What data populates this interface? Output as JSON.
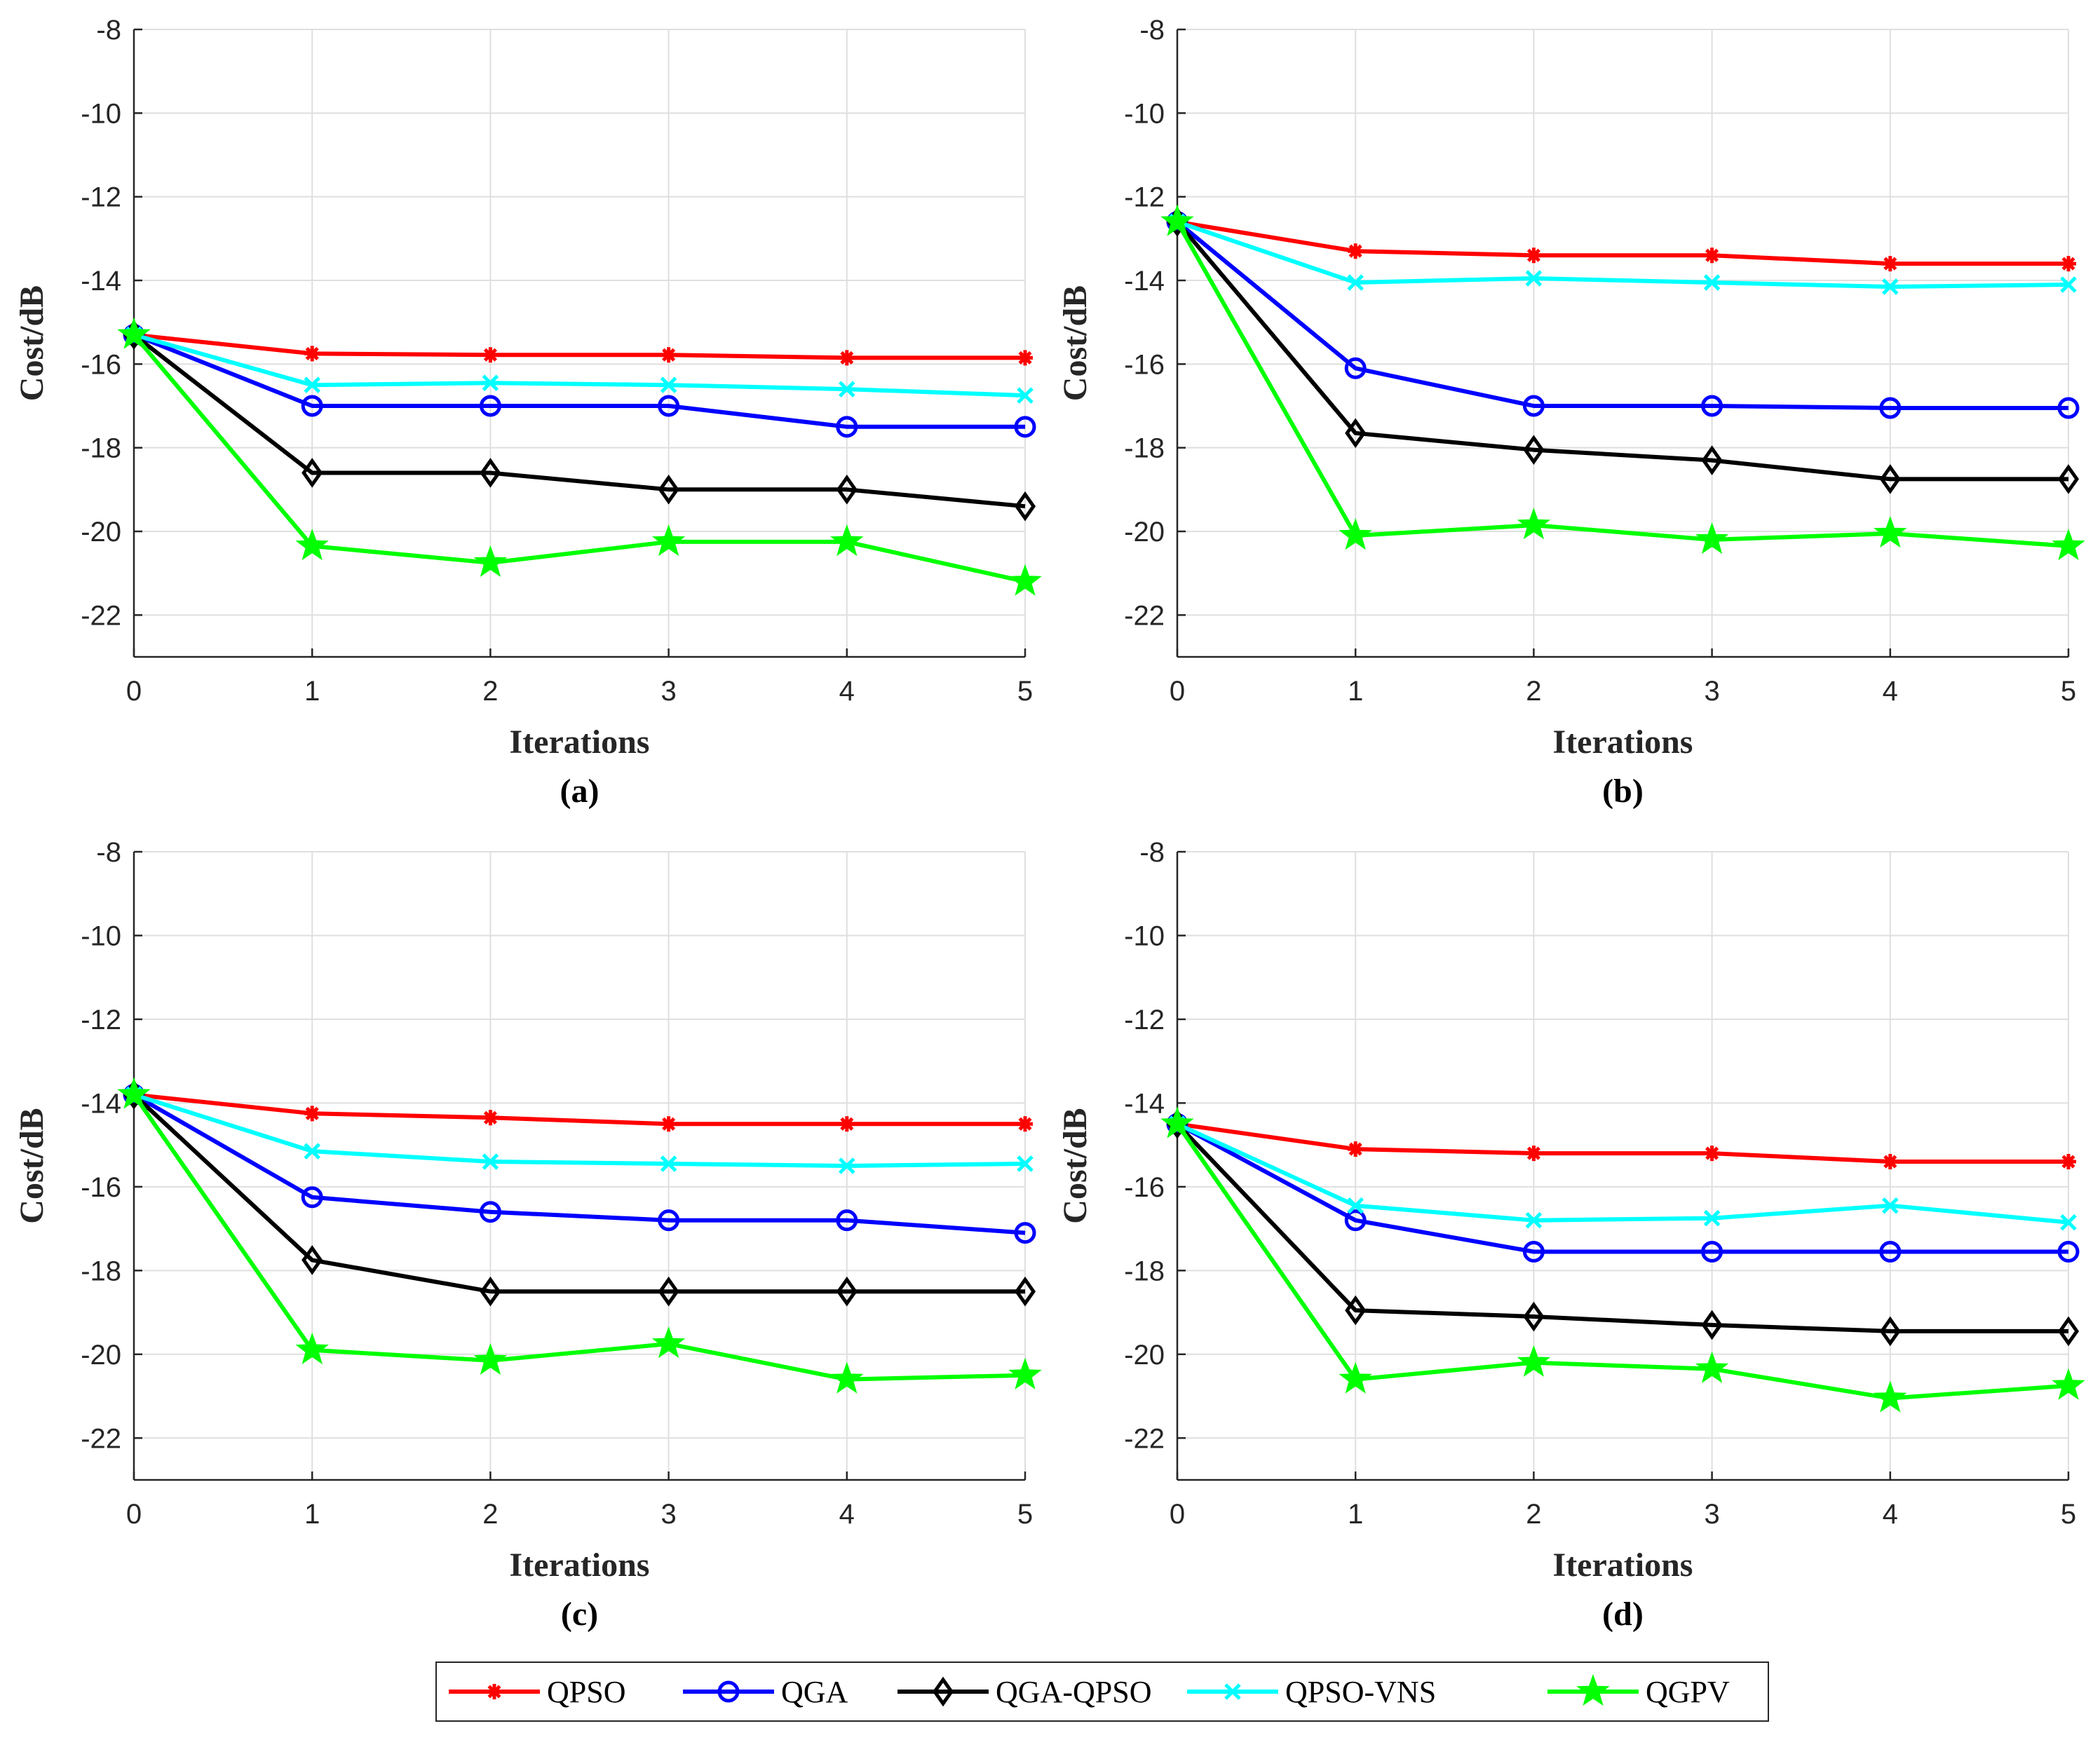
{
  "legend": {
    "entries": [
      "QPSO",
      "QGA",
      "QGA-QPSO",
      "QPSO-VNS",
      "QGPV"
    ]
  },
  "series_style": [
    {
      "name": "QPSO",
      "color": "#ff0000",
      "marker": "asterisk"
    },
    {
      "name": "QGA",
      "color": "#0000ff",
      "marker": "circle"
    },
    {
      "name": "QGA-QPSO",
      "color": "#000000",
      "marker": "diamond"
    },
    {
      "name": "QPSO-VNS",
      "color": "#00ffff",
      "marker": "cross"
    },
    {
      "name": "QGPV",
      "color": "#00ff00",
      "marker": "star"
    }
  ],
  "chart_data": [
    {
      "type": "line",
      "panel": "a",
      "caption": "(a)",
      "xlabel": "Iterations",
      "ylabel": "Cost/dB",
      "x": [
        0,
        1,
        2,
        3,
        4,
        5
      ],
      "xticks": [
        "0",
        "1",
        "2",
        "3",
        "4",
        "5"
      ],
      "yticks": [
        "-8",
        "-10",
        "-12",
        "-14",
        "-16",
        "-18",
        "-20",
        "-22"
      ],
      "xlim": [
        0,
        5
      ],
      "ylim": [
        -23,
        -8
      ],
      "grid": true,
      "series": [
        {
          "name": "QPSO",
          "values": [
            -15.3,
            -15.75,
            -15.78,
            -15.78,
            -15.85,
            -15.85
          ]
        },
        {
          "name": "QGA",
          "values": [
            -15.3,
            -17.0,
            -17.0,
            -17.0,
            -17.5,
            -17.5
          ]
        },
        {
          "name": "QGA-QPSO",
          "values": [
            -15.3,
            -18.6,
            -18.6,
            -19.0,
            -19.0,
            -19.4
          ]
        },
        {
          "name": "QPSO-VNS",
          "values": [
            -15.3,
            -16.5,
            -16.45,
            -16.5,
            -16.6,
            -16.75
          ]
        },
        {
          "name": "QGPV",
          "values": [
            -15.3,
            -20.35,
            -20.75,
            -20.25,
            -20.25,
            -21.2
          ]
        }
      ]
    },
    {
      "type": "line",
      "panel": "b",
      "caption": "(b)",
      "xlabel": "Iterations",
      "ylabel": "Cost/dB",
      "x": [
        0,
        1,
        2,
        3,
        4,
        5
      ],
      "xticks": [
        "0",
        "1",
        "2",
        "3",
        "4",
        "5"
      ],
      "yticks": [
        "-8",
        "-10",
        "-12",
        "-14",
        "-16",
        "-18",
        "-20",
        "-22"
      ],
      "xlim": [
        0,
        5
      ],
      "ylim": [
        -23,
        -8
      ],
      "grid": true,
      "series": [
        {
          "name": "QPSO",
          "values": [
            -12.6,
            -13.3,
            -13.4,
            -13.4,
            -13.6,
            -13.6
          ]
        },
        {
          "name": "QGA",
          "values": [
            -12.6,
            -16.1,
            -17.0,
            -17.0,
            -17.05,
            -17.05
          ]
        },
        {
          "name": "QGA-QPSO",
          "values": [
            -12.6,
            -17.65,
            -18.05,
            -18.3,
            -18.75,
            -18.75
          ]
        },
        {
          "name": "QPSO-VNS",
          "values": [
            -12.6,
            -14.05,
            -13.95,
            -14.05,
            -14.15,
            -14.1
          ]
        },
        {
          "name": "QGPV",
          "values": [
            -12.6,
            -20.1,
            -19.85,
            -20.2,
            -20.05,
            -20.35
          ]
        }
      ]
    },
    {
      "type": "line",
      "panel": "c",
      "caption": "(c)",
      "xlabel": "Iterations",
      "ylabel": "Cost/dB",
      "x": [
        0,
        1,
        2,
        3,
        4,
        5
      ],
      "xticks": [
        "0",
        "1",
        "2",
        "3",
        "4",
        "5"
      ],
      "yticks": [
        "-8",
        "-10",
        "-12",
        "-14",
        "-16",
        "-18",
        "-20",
        "-22"
      ],
      "xlim": [
        0,
        5
      ],
      "ylim": [
        -23,
        -8
      ],
      "grid": true,
      "series": [
        {
          "name": "QPSO",
          "values": [
            -13.8,
            -14.25,
            -14.35,
            -14.5,
            -14.5,
            -14.5
          ]
        },
        {
          "name": "QGA",
          "values": [
            -13.8,
            -16.25,
            -16.6,
            -16.8,
            -16.8,
            -17.1
          ]
        },
        {
          "name": "QGA-QPSO",
          "values": [
            -13.8,
            -17.75,
            -18.5,
            -18.5,
            -18.5,
            -18.5
          ]
        },
        {
          "name": "QPSO-VNS",
          "values": [
            -13.8,
            -15.15,
            -15.4,
            -15.45,
            -15.5,
            -15.45
          ]
        },
        {
          "name": "QGPV",
          "values": [
            -13.8,
            -19.9,
            -20.15,
            -19.75,
            -20.6,
            -20.5
          ]
        }
      ]
    },
    {
      "type": "line",
      "panel": "d",
      "caption": "(d)",
      "xlabel": "Iterations",
      "ylabel": "Cost/dB",
      "x": [
        0,
        1,
        2,
        3,
        4,
        5
      ],
      "xticks": [
        "0",
        "1",
        "2",
        "3",
        "4",
        "5"
      ],
      "yticks": [
        "-8",
        "-10",
        "-12",
        "-14",
        "-16",
        "-18",
        "-20",
        "-22"
      ],
      "xlim": [
        0,
        5
      ],
      "ylim": [
        -23,
        -8
      ],
      "grid": true,
      "series": [
        {
          "name": "QPSO",
          "values": [
            -14.5,
            -15.1,
            -15.2,
            -15.2,
            -15.4,
            -15.4
          ]
        },
        {
          "name": "QGA",
          "values": [
            -14.5,
            -16.8,
            -17.55,
            -17.55,
            -17.55,
            -17.55
          ]
        },
        {
          "name": "QGA-QPSO",
          "values": [
            -14.5,
            -18.95,
            -19.1,
            -19.3,
            -19.45,
            -19.45
          ]
        },
        {
          "name": "QPSO-VNS",
          "values": [
            -14.5,
            -16.45,
            -16.8,
            -16.75,
            -16.45,
            -16.85
          ]
        },
        {
          "name": "QGPV",
          "values": [
            -14.5,
            -20.6,
            -20.2,
            -20.35,
            -21.05,
            -20.75
          ]
        }
      ]
    }
  ]
}
